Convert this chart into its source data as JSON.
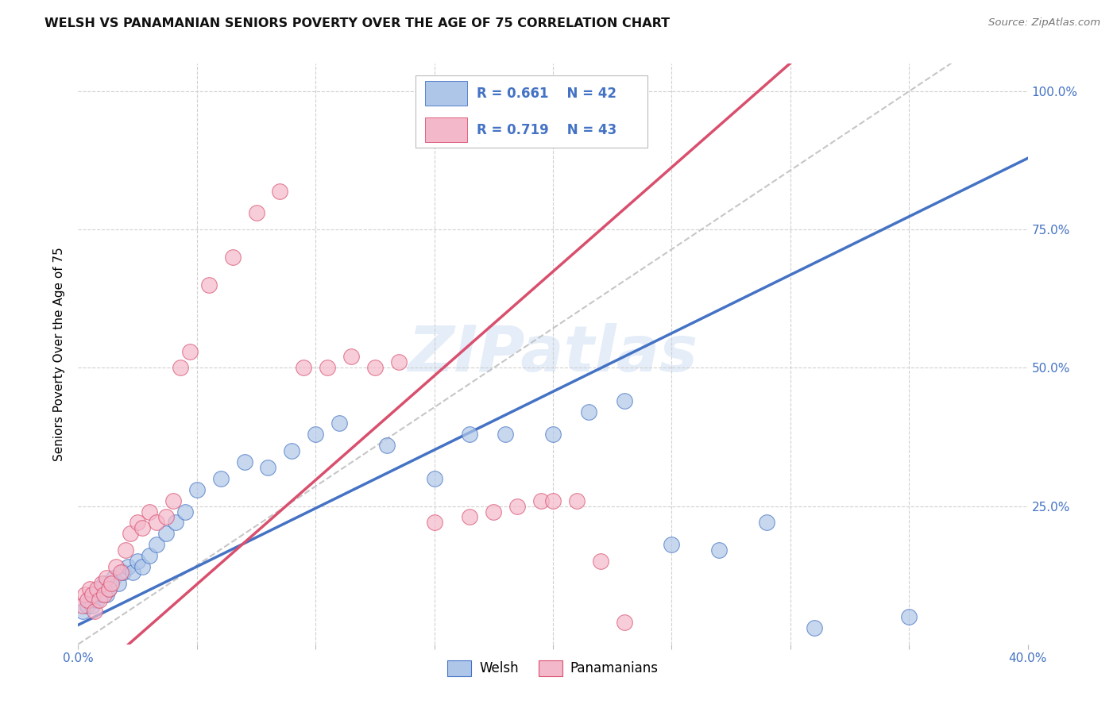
{
  "title": "WELSH VS PANAMANIAN SENIORS POVERTY OVER THE AGE OF 75 CORRELATION CHART",
  "source": "Source: ZipAtlas.com",
  "ylabel": "Seniors Poverty Over the Age of 75",
  "x_min": 0.0,
  "x_max": 0.4,
  "y_min": 0.0,
  "y_max": 1.05,
  "welsh_color": "#aec6e8",
  "panamanian_color": "#f4b8cb",
  "welsh_line_color": "#4472c4",
  "panamanian_line_color": "#d94f6e",
  "diagonal_color": "#c0c0c0",
  "welsh_R": 0.661,
  "welsh_N": 42,
  "panamanian_R": 0.719,
  "panamanian_N": 43,
  "legend_welsh_label": "Welsh",
  "legend_panamanian_label": "Panamanians",
  "watermark": "ZIPatlas",
  "welsh_x": [
    0.002,
    0.004,
    0.005,
    0.006,
    0.007,
    0.008,
    0.009,
    0.01,
    0.011,
    0.012,
    0.013,
    0.015,
    0.017,
    0.019,
    0.021,
    0.023,
    0.025,
    0.027,
    0.03,
    0.033,
    0.037,
    0.041,
    0.045,
    0.05,
    0.06,
    0.07,
    0.08,
    0.09,
    0.1,
    0.11,
    0.13,
    0.15,
    0.165,
    0.18,
    0.2,
    0.215,
    0.23,
    0.25,
    0.27,
    0.29,
    0.31,
    0.35
  ],
  "welsh_y": [
    0.06,
    0.07,
    0.08,
    0.07,
    0.09,
    0.08,
    0.1,
    0.09,
    0.11,
    0.09,
    0.1,
    0.12,
    0.11,
    0.13,
    0.14,
    0.13,
    0.15,
    0.14,
    0.16,
    0.18,
    0.2,
    0.22,
    0.24,
    0.28,
    0.3,
    0.33,
    0.32,
    0.35,
    0.38,
    0.4,
    0.36,
    0.3,
    0.38,
    0.38,
    0.38,
    0.42,
    0.44,
    0.18,
    0.17,
    0.22,
    0.03,
    0.05
  ],
  "panamanian_x": [
    0.002,
    0.003,
    0.004,
    0.005,
    0.006,
    0.007,
    0.008,
    0.009,
    0.01,
    0.011,
    0.012,
    0.013,
    0.014,
    0.016,
    0.018,
    0.02,
    0.022,
    0.025,
    0.027,
    0.03,
    0.033,
    0.037,
    0.04,
    0.043,
    0.047,
    0.055,
    0.065,
    0.075,
    0.085,
    0.095,
    0.105,
    0.115,
    0.125,
    0.135,
    0.15,
    0.165,
    0.175,
    0.185,
    0.195,
    0.2,
    0.21,
    0.22,
    0.23
  ],
  "panamanian_y": [
    0.07,
    0.09,
    0.08,
    0.1,
    0.09,
    0.06,
    0.1,
    0.08,
    0.11,
    0.09,
    0.12,
    0.1,
    0.11,
    0.14,
    0.13,
    0.17,
    0.2,
    0.22,
    0.21,
    0.24,
    0.22,
    0.23,
    0.26,
    0.5,
    0.53,
    0.65,
    0.7,
    0.78,
    0.82,
    0.5,
    0.5,
    0.52,
    0.5,
    0.51,
    0.22,
    0.23,
    0.24,
    0.25,
    0.26,
    0.26,
    0.26,
    0.15,
    0.04
  ]
}
